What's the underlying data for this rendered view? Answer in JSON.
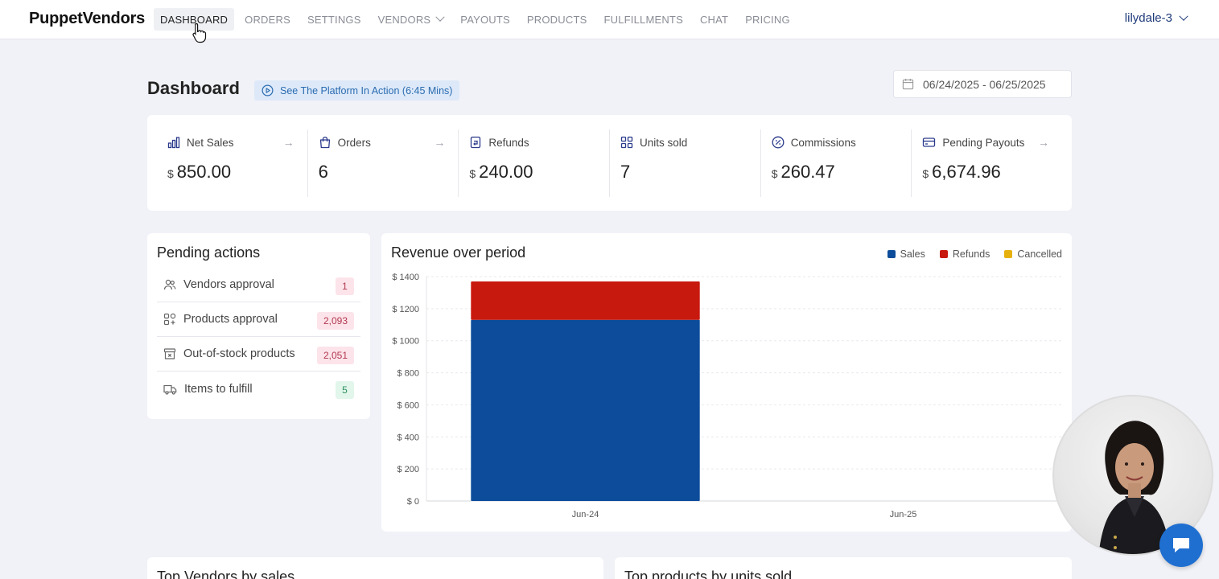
{
  "app": {
    "logo": "PuppetVendors"
  },
  "nav": {
    "items": [
      {
        "label": "DASHBOARD",
        "active": true
      },
      {
        "label": "ORDERS"
      },
      {
        "label": "SETTINGS"
      },
      {
        "label": "VENDORS",
        "has_dropdown": true
      },
      {
        "label": "PAYOUTS"
      },
      {
        "label": "PRODUCTS"
      },
      {
        "label": "FULFILLMENTS"
      },
      {
        "label": "CHAT"
      },
      {
        "label": "PRICING"
      }
    ],
    "user": "lilydale-3"
  },
  "header": {
    "title": "Dashboard",
    "promo": "See The Platform In Action (6:45 Mins)",
    "date_range": "06/24/2025 - 06/25/2025"
  },
  "stats": [
    {
      "label": "Net Sales",
      "currency": "$",
      "value": "850.00",
      "icon": "bar-chart-icon",
      "arrow": true
    },
    {
      "label": "Orders",
      "currency": "",
      "value": "6",
      "icon": "shopping-bag-icon",
      "arrow": true
    },
    {
      "label": "Refunds",
      "currency": "$",
      "value": "240.00",
      "icon": "refund-receipt-icon",
      "arrow": false
    },
    {
      "label": "Units sold",
      "currency": "",
      "value": "7",
      "icon": "grid-icon",
      "arrow": false
    },
    {
      "label": "Commissions",
      "currency": "$",
      "value": "260.47",
      "icon": "percent-badge-icon",
      "arrow": false
    },
    {
      "label": "Pending Payouts",
      "currency": "$",
      "value": "6,674.96",
      "icon": "credit-card-icon",
      "arrow": true
    }
  ],
  "pending": {
    "title": "Pending actions",
    "items": [
      {
        "label": "Vendors approval",
        "count": "1",
        "tone": "red",
        "icon": "users-icon"
      },
      {
        "label": "Products approval",
        "count": "2,093",
        "tone": "red",
        "icon": "apps-plus-icon"
      },
      {
        "label": "Out-of-stock products",
        "count": "2,051",
        "tone": "red",
        "icon": "archive-x-icon"
      },
      {
        "label": "Items to fulfill",
        "count": "5",
        "tone": "green",
        "icon": "truck-icon"
      }
    ]
  },
  "revenue": {
    "title": "Revenue over period",
    "legend": [
      {
        "label": "Sales",
        "color": "#0d4c9a"
      },
      {
        "label": "Refunds",
        "color": "#c8190f"
      },
      {
        "label": "Cancelled",
        "color": "#e6b10c"
      }
    ]
  },
  "chart_data": {
    "type": "bar",
    "stacked": true,
    "title": "Revenue over period",
    "categories": [
      "Jun-24",
      "Jun-25"
    ],
    "series": [
      {
        "name": "Sales",
        "color": "#0d4c9a",
        "values": [
          1130,
          0
        ]
      },
      {
        "name": "Refunds",
        "color": "#c8190f",
        "values": [
          240,
          0
        ]
      },
      {
        "name": "Cancelled",
        "color": "#e6b10c",
        "values": [
          0,
          0
        ]
      }
    ],
    "ylim": [
      0,
      1400
    ],
    "yticks": [
      0,
      200,
      400,
      600,
      800,
      1000,
      1200,
      1400
    ],
    "ytick_prefix": "$ ",
    "grid": true,
    "legend_position": "top-right"
  },
  "bottom": {
    "top_vendors": "Top Vendors by sales",
    "top_products": "Top products by units sold"
  }
}
